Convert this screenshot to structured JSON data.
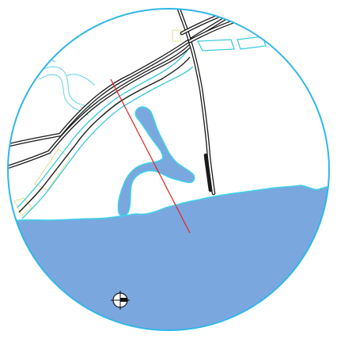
{
  "map": {
    "colors": {
      "background": "#ffffff",
      "water": "#7aa7de",
      "water_outline": "#3fd0ea",
      "lens_border": "#2fb7e8",
      "road": "#1a1a1a",
      "road_casing": "#ffffff",
      "channel_edge": "#36c9d9",
      "trail": "#5fd3e8",
      "parcel": "#e0d27a",
      "section_line": "#e52222",
      "marker": "#111111"
    },
    "features": [
      {
        "name": "sea",
        "kind": "water-body"
      },
      {
        "name": "inlet",
        "kind": "water-body"
      },
      {
        "name": "canal",
        "kind": "channel"
      },
      {
        "name": "roads",
        "kind": "road-network"
      },
      {
        "name": "section-line",
        "kind": "annotation"
      },
      {
        "name": "north-marker",
        "kind": "symbol",
        "icon": "crosshair-icon"
      }
    ]
  }
}
